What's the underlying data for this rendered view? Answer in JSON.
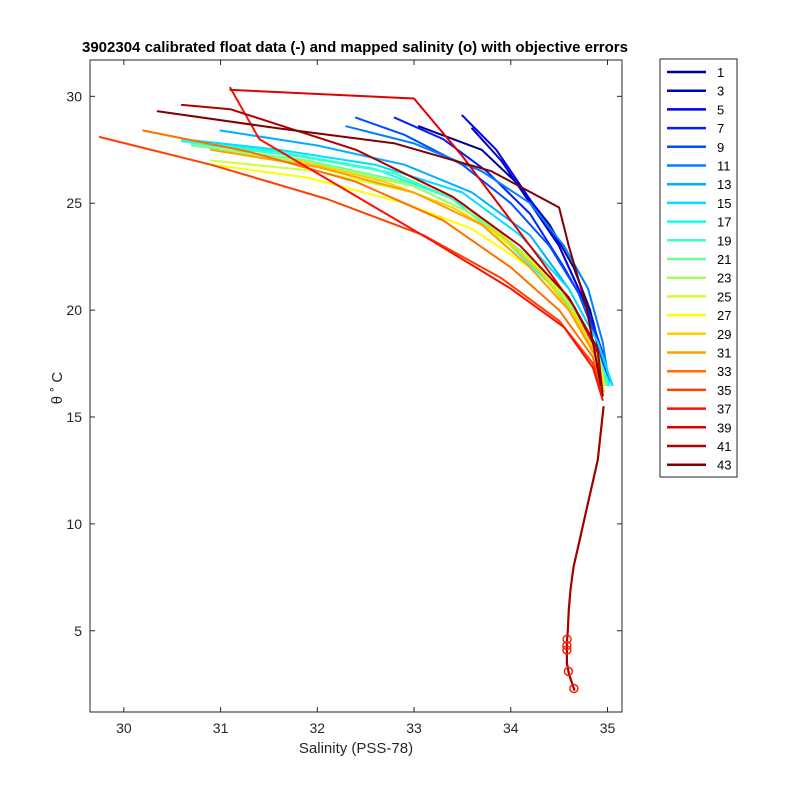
{
  "chart_data": {
    "type": "line",
    "title": "3902304 calibrated float data (-) and mapped salinity (o) with objective errors",
    "xlabel": "Salinity (PSS-78)",
    "ylabel": "θ ˚ C",
    "xlim": [
      29.65,
      35.15
    ],
    "ylim": [
      1.2,
      31.7
    ],
    "xticks": [
      "30",
      "31",
      "32",
      "33",
      "34",
      "35"
    ],
    "yticks": [
      "5",
      "10",
      "15",
      "20",
      "25",
      "30"
    ],
    "legend_position": "outside-right",
    "grid": false,
    "colormap": "jet",
    "legend": [
      "1",
      "3",
      "5",
      "7",
      "9",
      "11",
      "13",
      "15",
      "17",
      "19",
      "21",
      "23",
      "25",
      "27",
      "29",
      "31",
      "33",
      "35",
      "37",
      "39",
      "41",
      "43"
    ],
    "legend_colors": [
      "#00008f",
      "#0000bf",
      "#0000ef",
      "#0020ff",
      "#0050ff",
      "#0080ff",
      "#00afff",
      "#00dfff",
      "#10ffef",
      "#40ffbf",
      "#70ff8f",
      "#9fff60",
      "#cfff30",
      "#ffff00",
      "#ffcf00",
      "#ffa000",
      "#ff7000",
      "#ff4000",
      "#ff1000",
      "#df0000",
      "#af0000",
      "#800000"
    ],
    "deep_profile": {
      "x": [
        34.96,
        34.9,
        34.85,
        34.8,
        34.75,
        34.7,
        34.65,
        34.62,
        34.6,
        34.59,
        34.58,
        34.58,
        34.58,
        34.6,
        34.63,
        34.66
      ],
      "y": [
        15.5,
        13.0,
        12.0,
        11.0,
        10.0,
        9.0,
        8.0,
        7.0,
        6.0,
        5.0,
        4.5,
        4.0,
        3.5,
        3.0,
        2.6,
        2.2
      ]
    },
    "series": [
      {
        "name": "1",
        "color": "#00008f",
        "x": [
          33.05,
          33.7,
          34.05,
          34.4,
          34.65,
          34.82,
          34.93,
          34.97
        ],
        "y": [
          28.6,
          27.5,
          26.0,
          24.0,
          22.0,
          20.0,
          18.0,
          16.5
        ]
      },
      {
        "name": "3",
        "color": "#0000bf",
        "x": [
          33.6,
          33.9,
          34.2,
          34.5,
          34.7,
          34.85,
          34.93,
          34.97
        ],
        "y": [
          28.5,
          27.0,
          25.0,
          23.0,
          21.0,
          19.5,
          18.0,
          16.5
        ]
      },
      {
        "name": "5",
        "color": "#0000ef",
        "x": [
          33.5,
          33.85,
          34.15,
          34.45,
          34.65,
          34.8,
          34.92,
          34.97
        ],
        "y": [
          29.1,
          27.5,
          25.5,
          23.5,
          21.5,
          20.0,
          18.0,
          16.5
        ]
      },
      {
        "name": "7",
        "color": "#0020ff",
        "x": [
          32.8,
          33.3,
          33.75,
          34.2,
          34.55,
          34.8,
          34.95,
          35.0
        ],
        "y": [
          29.0,
          28.0,
          26.5,
          24.5,
          22.0,
          20.0,
          18.0,
          16.5
        ]
      },
      {
        "name": "9",
        "color": "#0050ff",
        "x": [
          32.4,
          32.9,
          33.5,
          34.0,
          34.4,
          34.7,
          34.9,
          35.0
        ],
        "y": [
          29.0,
          28.2,
          26.8,
          25.0,
          23.0,
          20.8,
          18.5,
          16.5
        ]
      },
      {
        "name": "11",
        "color": "#0080ff",
        "x": [
          32.3,
          33.0,
          33.7,
          34.2,
          34.55,
          34.8,
          34.95,
          35.02
        ],
        "y": [
          28.6,
          27.8,
          26.5,
          25.0,
          23.0,
          21.0,
          18.5,
          16.5
        ]
      },
      {
        "name": "13",
        "color": "#00afff",
        "x": [
          31.0,
          32.0,
          32.9,
          33.6,
          34.2,
          34.6,
          34.9,
          35.05
        ],
        "y": [
          28.4,
          27.7,
          26.8,
          25.5,
          23.5,
          21.0,
          18.5,
          16.5
        ]
      },
      {
        "name": "15",
        "color": "#00dfff",
        "x": [
          30.6,
          31.6,
          32.6,
          33.5,
          34.1,
          34.6,
          34.9,
          35.05
        ],
        "y": [
          28.0,
          27.5,
          26.8,
          25.5,
          23.5,
          21.0,
          18.5,
          16.5
        ]
      },
      {
        "name": "17",
        "color": "#10ffef",
        "x": [
          30.6,
          31.6,
          32.6,
          33.4,
          34.0,
          34.5,
          34.85,
          35.02
        ],
        "y": [
          27.9,
          27.4,
          26.6,
          25.2,
          23.0,
          20.8,
          18.5,
          16.5
        ]
      },
      {
        "name": "19",
        "color": "#40ffbf",
        "x": [
          30.7,
          31.8,
          32.8,
          33.5,
          34.1,
          34.55,
          34.88,
          35.0
        ],
        "y": [
          27.8,
          27.2,
          26.4,
          25.0,
          22.8,
          20.6,
          18.3,
          16.5
        ]
      },
      {
        "name": "21",
        "color": "#70ff8f",
        "x": [
          30.7,
          31.9,
          32.9,
          33.6,
          34.15,
          34.6,
          34.88,
          34.98
        ],
        "y": [
          27.7,
          27.0,
          26.0,
          24.5,
          22.6,
          20.4,
          18.2,
          16.5
        ]
      },
      {
        "name": "23",
        "color": "#9fff60",
        "x": [
          31.0,
          32.0,
          33.0,
          33.7,
          34.2,
          34.6,
          34.88,
          34.97
        ],
        "y": [
          27.5,
          26.8,
          25.8,
          24.3,
          22.4,
          20.3,
          18.2,
          16.5
        ]
      },
      {
        "name": "25",
        "color": "#cfff30",
        "x": [
          30.9,
          32.0,
          33.0,
          33.7,
          34.25,
          34.65,
          34.9,
          34.97
        ],
        "y": [
          27.0,
          26.5,
          25.5,
          24.0,
          22.2,
          20.2,
          18.1,
          16.5
        ]
      },
      {
        "name": "27",
        "color": "#ffff00",
        "x": [
          30.9,
          31.9,
          32.9,
          33.6,
          34.2,
          34.6,
          34.87,
          34.96
        ],
        "y": [
          26.8,
          26.2,
          25.0,
          23.8,
          22.0,
          20.0,
          18.0,
          16.3
        ]
      },
      {
        "name": "29",
        "color": "#ffcf00",
        "x": [
          31.8,
          32.7,
          33.4,
          33.9,
          34.3,
          34.65,
          34.9,
          34.96
        ],
        "y": [
          27.0,
          26.0,
          24.8,
          23.5,
          21.8,
          19.8,
          17.8,
          16.2
        ]
      },
      {
        "name": "31",
        "color": "#ffa000",
        "x": [
          30.9,
          32.0,
          33.0,
          33.7,
          34.2,
          34.6,
          34.88,
          34.95
        ],
        "y": [
          27.5,
          26.7,
          25.5,
          24.0,
          22.0,
          20.0,
          17.8,
          16.0
        ]
      },
      {
        "name": "33",
        "color": "#ff7000",
        "x": [
          30.2,
          31.3,
          32.4,
          33.3,
          34.0,
          34.5,
          34.85,
          34.95
        ],
        "y": [
          28.4,
          27.4,
          26.0,
          24.2,
          22.0,
          20.0,
          17.8,
          16.0
        ]
      },
      {
        "name": "35",
        "color": "#ff4000",
        "x": [
          29.75,
          30.9,
          32.1,
          33.1,
          33.9,
          34.5,
          34.85,
          34.95
        ],
        "y": [
          28.1,
          26.8,
          25.2,
          23.5,
          21.5,
          19.5,
          17.5,
          16.0
        ]
      },
      {
        "name": "37",
        "color": "#ff1000",
        "x": [
          31.1,
          31.4,
          32.3,
          33.2,
          34.0,
          34.55,
          34.85,
          34.95
        ],
        "y": [
          30.4,
          28.0,
          25.6,
          23.2,
          21.0,
          19.2,
          17.3,
          15.8
        ]
      },
      {
        "name": "39",
        "color": "#df0000",
        "x": [
          31.1,
          33.0,
          33.5,
          33.9,
          34.3,
          34.65,
          34.9,
          34.95
        ],
        "y": [
          30.3,
          29.9,
          27.2,
          24.8,
          22.4,
          20.2,
          18.0,
          16.0
        ]
      },
      {
        "name": "41",
        "color": "#af0000",
        "x": [
          30.6,
          31.1,
          32.4,
          33.4,
          34.1,
          34.6,
          34.9,
          34.95
        ],
        "y": [
          29.6,
          29.4,
          27.5,
          25.3,
          23.0,
          20.6,
          18.2,
          16.0
        ]
      },
      {
        "name": "43",
        "color": "#800000",
        "x": [
          30.35,
          31.6,
          32.8,
          33.8,
          34.5,
          34.6,
          34.78,
          34.93
        ],
        "y": [
          29.3,
          28.5,
          27.8,
          26.5,
          24.8,
          23.0,
          20.2,
          16.5
        ]
      }
    ]
  }
}
